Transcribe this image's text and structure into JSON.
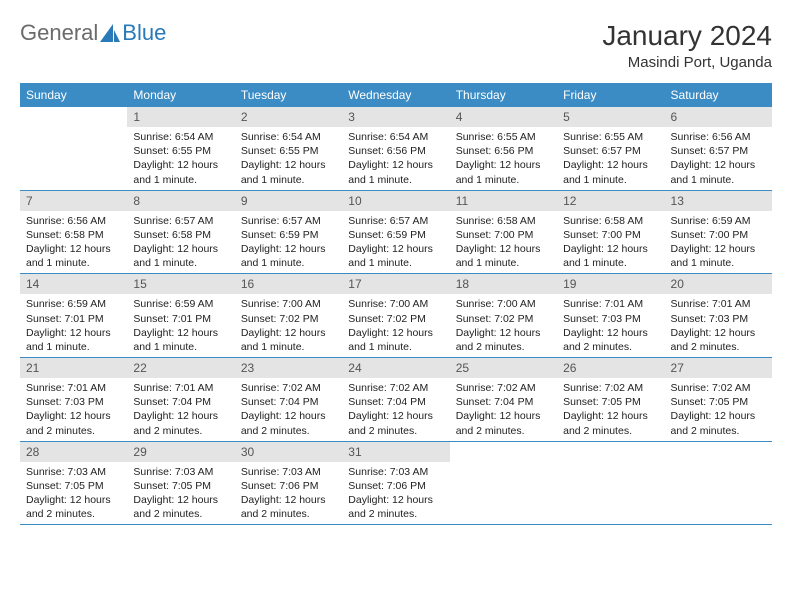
{
  "logo": {
    "part1": "General",
    "part2": "Blue"
  },
  "title": "January 2024",
  "location": "Masindi Port, Uganda",
  "colors": {
    "header_bg": "#3b8bc4",
    "daynum_bg": "#e4e4e4",
    "rule": "#3b8bc4",
    "logo_gray": "#6b6b6b",
    "logo_blue": "#2a7ab8"
  },
  "weekdays": [
    "Sunday",
    "Monday",
    "Tuesday",
    "Wednesday",
    "Thursday",
    "Friday",
    "Saturday"
  ],
  "weeks": [
    [
      {
        "n": "",
        "lines": []
      },
      {
        "n": "1",
        "lines": [
          "Sunrise: 6:54 AM",
          "Sunset: 6:55 PM",
          "Daylight: 12 hours",
          "and 1 minute."
        ]
      },
      {
        "n": "2",
        "lines": [
          "Sunrise: 6:54 AM",
          "Sunset: 6:55 PM",
          "Daylight: 12 hours",
          "and 1 minute."
        ]
      },
      {
        "n": "3",
        "lines": [
          "Sunrise: 6:54 AM",
          "Sunset: 6:56 PM",
          "Daylight: 12 hours",
          "and 1 minute."
        ]
      },
      {
        "n": "4",
        "lines": [
          "Sunrise: 6:55 AM",
          "Sunset: 6:56 PM",
          "Daylight: 12 hours",
          "and 1 minute."
        ]
      },
      {
        "n": "5",
        "lines": [
          "Sunrise: 6:55 AM",
          "Sunset: 6:57 PM",
          "Daylight: 12 hours",
          "and 1 minute."
        ]
      },
      {
        "n": "6",
        "lines": [
          "Sunrise: 6:56 AM",
          "Sunset: 6:57 PM",
          "Daylight: 12 hours",
          "and 1 minute."
        ]
      }
    ],
    [
      {
        "n": "7",
        "lines": [
          "Sunrise: 6:56 AM",
          "Sunset: 6:58 PM",
          "Daylight: 12 hours",
          "and 1 minute."
        ]
      },
      {
        "n": "8",
        "lines": [
          "Sunrise: 6:57 AM",
          "Sunset: 6:58 PM",
          "Daylight: 12 hours",
          "and 1 minute."
        ]
      },
      {
        "n": "9",
        "lines": [
          "Sunrise: 6:57 AM",
          "Sunset: 6:59 PM",
          "Daylight: 12 hours",
          "and 1 minute."
        ]
      },
      {
        "n": "10",
        "lines": [
          "Sunrise: 6:57 AM",
          "Sunset: 6:59 PM",
          "Daylight: 12 hours",
          "and 1 minute."
        ]
      },
      {
        "n": "11",
        "lines": [
          "Sunrise: 6:58 AM",
          "Sunset: 7:00 PM",
          "Daylight: 12 hours",
          "and 1 minute."
        ]
      },
      {
        "n": "12",
        "lines": [
          "Sunrise: 6:58 AM",
          "Sunset: 7:00 PM",
          "Daylight: 12 hours",
          "and 1 minute."
        ]
      },
      {
        "n": "13",
        "lines": [
          "Sunrise: 6:59 AM",
          "Sunset: 7:00 PM",
          "Daylight: 12 hours",
          "and 1 minute."
        ]
      }
    ],
    [
      {
        "n": "14",
        "lines": [
          "Sunrise: 6:59 AM",
          "Sunset: 7:01 PM",
          "Daylight: 12 hours",
          "and 1 minute."
        ]
      },
      {
        "n": "15",
        "lines": [
          "Sunrise: 6:59 AM",
          "Sunset: 7:01 PM",
          "Daylight: 12 hours",
          "and 1 minute."
        ]
      },
      {
        "n": "16",
        "lines": [
          "Sunrise: 7:00 AM",
          "Sunset: 7:02 PM",
          "Daylight: 12 hours",
          "and 1 minute."
        ]
      },
      {
        "n": "17",
        "lines": [
          "Sunrise: 7:00 AM",
          "Sunset: 7:02 PM",
          "Daylight: 12 hours",
          "and 1 minute."
        ]
      },
      {
        "n": "18",
        "lines": [
          "Sunrise: 7:00 AM",
          "Sunset: 7:02 PM",
          "Daylight: 12 hours",
          "and 2 minutes."
        ]
      },
      {
        "n": "19",
        "lines": [
          "Sunrise: 7:01 AM",
          "Sunset: 7:03 PM",
          "Daylight: 12 hours",
          "and 2 minutes."
        ]
      },
      {
        "n": "20",
        "lines": [
          "Sunrise: 7:01 AM",
          "Sunset: 7:03 PM",
          "Daylight: 12 hours",
          "and 2 minutes."
        ]
      }
    ],
    [
      {
        "n": "21",
        "lines": [
          "Sunrise: 7:01 AM",
          "Sunset: 7:03 PM",
          "Daylight: 12 hours",
          "and 2 minutes."
        ]
      },
      {
        "n": "22",
        "lines": [
          "Sunrise: 7:01 AM",
          "Sunset: 7:04 PM",
          "Daylight: 12 hours",
          "and 2 minutes."
        ]
      },
      {
        "n": "23",
        "lines": [
          "Sunrise: 7:02 AM",
          "Sunset: 7:04 PM",
          "Daylight: 12 hours",
          "and 2 minutes."
        ]
      },
      {
        "n": "24",
        "lines": [
          "Sunrise: 7:02 AM",
          "Sunset: 7:04 PM",
          "Daylight: 12 hours",
          "and 2 minutes."
        ]
      },
      {
        "n": "25",
        "lines": [
          "Sunrise: 7:02 AM",
          "Sunset: 7:04 PM",
          "Daylight: 12 hours",
          "and 2 minutes."
        ]
      },
      {
        "n": "26",
        "lines": [
          "Sunrise: 7:02 AM",
          "Sunset: 7:05 PM",
          "Daylight: 12 hours",
          "and 2 minutes."
        ]
      },
      {
        "n": "27",
        "lines": [
          "Sunrise: 7:02 AM",
          "Sunset: 7:05 PM",
          "Daylight: 12 hours",
          "and 2 minutes."
        ]
      }
    ],
    [
      {
        "n": "28",
        "lines": [
          "Sunrise: 7:03 AM",
          "Sunset: 7:05 PM",
          "Daylight: 12 hours",
          "and 2 minutes."
        ]
      },
      {
        "n": "29",
        "lines": [
          "Sunrise: 7:03 AM",
          "Sunset: 7:05 PM",
          "Daylight: 12 hours",
          "and 2 minutes."
        ]
      },
      {
        "n": "30",
        "lines": [
          "Sunrise: 7:03 AM",
          "Sunset: 7:06 PM",
          "Daylight: 12 hours",
          "and 2 minutes."
        ]
      },
      {
        "n": "31",
        "lines": [
          "Sunrise: 7:03 AM",
          "Sunset: 7:06 PM",
          "Daylight: 12 hours",
          "and 2 minutes."
        ]
      },
      {
        "n": "",
        "lines": []
      },
      {
        "n": "",
        "lines": []
      },
      {
        "n": "",
        "lines": []
      }
    ]
  ]
}
